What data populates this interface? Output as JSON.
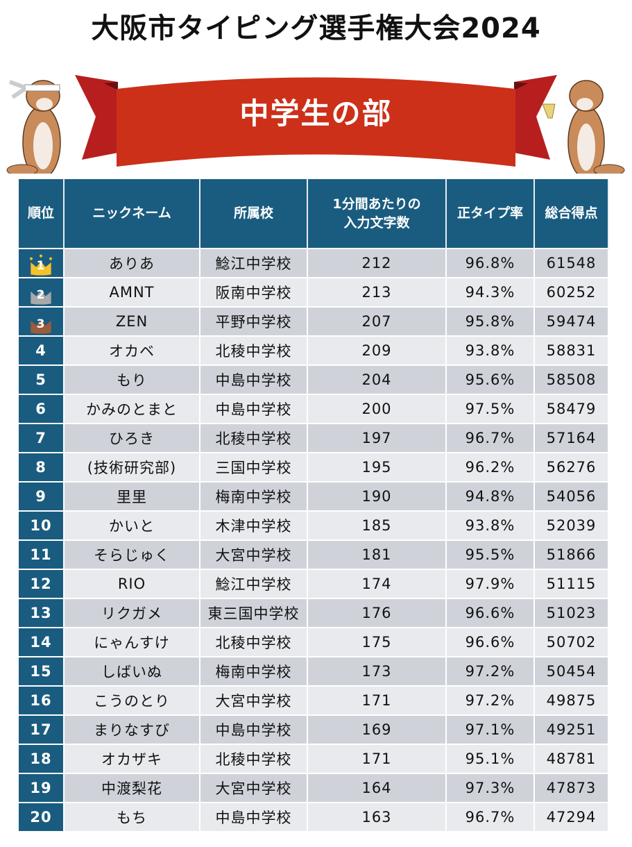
{
  "title": "大阪市タイピング選手権大会2024",
  "banner": "中学生の部",
  "colors": {
    "header": "#1a5c7f",
    "banner": "#cc3019",
    "gold": "#f5c22b",
    "silver": "#a7a9ab",
    "bronze": "#9a5c3a"
  },
  "headers": {
    "rank": "順位",
    "nickname": "ニックネーム",
    "school": "所属校",
    "cpm_line1": "1分間あたりの",
    "cpm_line2": "入力文字数",
    "accuracy": "正タイプ率",
    "score": "総合得点"
  },
  "rows": [
    {
      "rank": "1",
      "nickname": "ありあ",
      "school": "鯰江中学校",
      "cpm": "212",
      "accuracy": "96.8%",
      "score": "61548"
    },
    {
      "rank": "2",
      "nickname": "AMNT",
      "school": "阪南中学校",
      "cpm": "213",
      "accuracy": "94.3%",
      "score": "60252"
    },
    {
      "rank": "3",
      "nickname": "ZEN",
      "school": "平野中学校",
      "cpm": "207",
      "accuracy": "95.8%",
      "score": "59474"
    },
    {
      "rank": "4",
      "nickname": "オカベ",
      "school": "北稜中学校",
      "cpm": "209",
      "accuracy": "93.8%",
      "score": "58831"
    },
    {
      "rank": "5",
      "nickname": "もり",
      "school": "中島中学校",
      "cpm": "204",
      "accuracy": "95.6%",
      "score": "58508"
    },
    {
      "rank": "6",
      "nickname": "かみのとまと",
      "school": "中島中学校",
      "cpm": "200",
      "accuracy": "97.5%",
      "score": "58479"
    },
    {
      "rank": "7",
      "nickname": "ひろき",
      "school": "北稜中学校",
      "cpm": "197",
      "accuracy": "96.7%",
      "score": "57164"
    },
    {
      "rank": "8",
      "nickname": "(技術研究部)",
      "school": "三国中学校",
      "cpm": "195",
      "accuracy": "96.2%",
      "score": "56276"
    },
    {
      "rank": "9",
      "nickname": "里里",
      "school": "梅南中学校",
      "cpm": "190",
      "accuracy": "94.8%",
      "score": "54056"
    },
    {
      "rank": "10",
      "nickname": "かいと",
      "school": "木津中学校",
      "cpm": "185",
      "accuracy": "93.8%",
      "score": "52039"
    },
    {
      "rank": "11",
      "nickname": "そらじゅく",
      "school": "大宮中学校",
      "cpm": "181",
      "accuracy": "95.5%",
      "score": "51866"
    },
    {
      "rank": "12",
      "nickname": "RIO",
      "school": "鯰江中学校",
      "cpm": "174",
      "accuracy": "97.9%",
      "score": "51115"
    },
    {
      "rank": "13",
      "nickname": "リクガメ",
      "school": "東三国中学校",
      "cpm": "176",
      "accuracy": "96.6%",
      "score": "51023"
    },
    {
      "rank": "14",
      "nickname": "にゃんすけ",
      "school": "北稜中学校",
      "cpm": "175",
      "accuracy": "96.6%",
      "score": "50702"
    },
    {
      "rank": "15",
      "nickname": "しばいぬ",
      "school": "梅南中学校",
      "cpm": "173",
      "accuracy": "97.2%",
      "score": "50454"
    },
    {
      "rank": "16",
      "nickname": "こうのとり",
      "school": "大宮中学校",
      "cpm": "171",
      "accuracy": "97.2%",
      "score": "49875"
    },
    {
      "rank": "17",
      "nickname": "まりなすび",
      "school": "中島中学校",
      "cpm": "169",
      "accuracy": "97.1%",
      "score": "49251"
    },
    {
      "rank": "18",
      "nickname": "オカザキ",
      "school": "北稜中学校",
      "cpm": "171",
      "accuracy": "95.1%",
      "score": "48781"
    },
    {
      "rank": "19",
      "nickname": "中渡梨花",
      "school": "大宮中学校",
      "cpm": "164",
      "accuracy": "97.3%",
      "score": "47873"
    },
    {
      "rank": "20",
      "nickname": "もち",
      "school": "中島中学校",
      "cpm": "163",
      "accuracy": "96.7%",
      "score": "47294"
    }
  ]
}
